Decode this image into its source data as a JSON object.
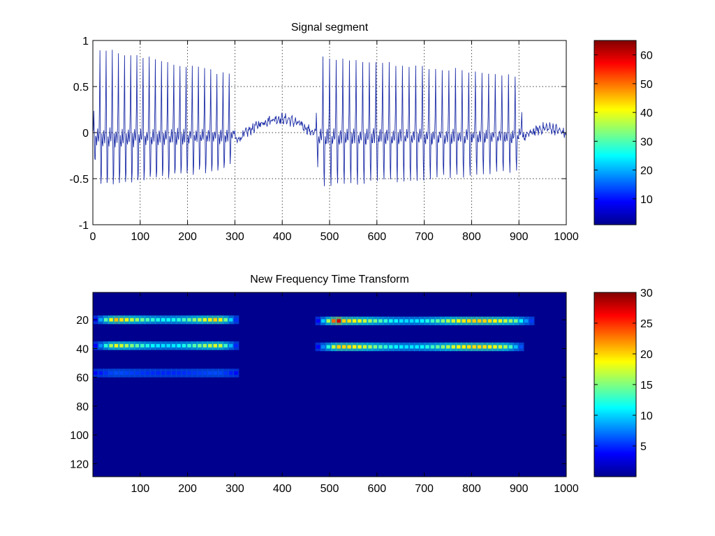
{
  "colors": {
    "signal_line": "#1f2fa8",
    "axis": "#000000",
    "grid": "#000000",
    "background": "#ffffff"
  },
  "colormap": "jet",
  "chart_data": [
    {
      "type": "line",
      "title": "Signal segment",
      "xlabel": "",
      "ylabel": "",
      "xlim": [
        0,
        1000
      ],
      "ylim": [
        -1,
        1
      ],
      "xticks": [
        "0",
        "100",
        "200",
        "300",
        "400",
        "500",
        "600",
        "700",
        "800",
        "900",
        "1000"
      ],
      "yticks": [
        "1",
        "0.5",
        "0",
        "-0.5",
        "-1"
      ],
      "grid": true,
      "segments": [
        {
          "x_start": 0,
          "x_end": 300,
          "cycle_period": 13,
          "peak_max": [
            0.9,
            0.6
          ],
          "peak_min": [
            -0.78,
            -0.5
          ]
        },
        {
          "x_start": 300,
          "x_end": 470,
          "quasi_flat_level": [
            -0.1,
            0.15
          ]
        },
        {
          "x_start": 470,
          "x_end": 910,
          "cycle_period": 14,
          "peak_max": [
            0.78,
            0.6
          ],
          "peak_min": [
            -0.7,
            -0.5
          ]
        },
        {
          "x_start": 910,
          "x_end": 1000,
          "quasi_flat_level": [
            -0.05,
            0.05
          ]
        }
      ],
      "colorbar": {
        "ticks": [
          "60",
          "50",
          "40",
          "30",
          "20",
          "10"
        ],
        "range": [
          1,
          65
        ]
      }
    },
    {
      "type": "heatmap",
      "title": "New Frequency Time Transform",
      "xlabel": "",
      "ylabel": "",
      "xlim": [
        0,
        1000
      ],
      "ylim": [
        1,
        129
      ],
      "xticks": [
        "100",
        "200",
        "300",
        "400",
        "500",
        "600",
        "700",
        "800",
        "900",
        "1000"
      ],
      "yticks": [
        "20",
        "40",
        "60",
        "80",
        "100",
        "120"
      ],
      "bands": [
        {
          "freq": 20,
          "x_ranges": [
            [
              0,
              300
            ],
            [
              470,
              930
            ]
          ],
          "peak_value": 28
        },
        {
          "freq": 38,
          "x_ranges": [
            [
              0,
              300
            ],
            [
              470,
              910
            ]
          ],
          "peak_value": 24
        },
        {
          "freq": 57,
          "x_ranges": [
            [
              0,
              300
            ]
          ],
          "peak_value": 4
        }
      ],
      "colorbar": {
        "ticks": [
          "30",
          "25",
          "20",
          "15",
          "10",
          "5"
        ],
        "range": [
          0,
          30
        ]
      }
    }
  ]
}
